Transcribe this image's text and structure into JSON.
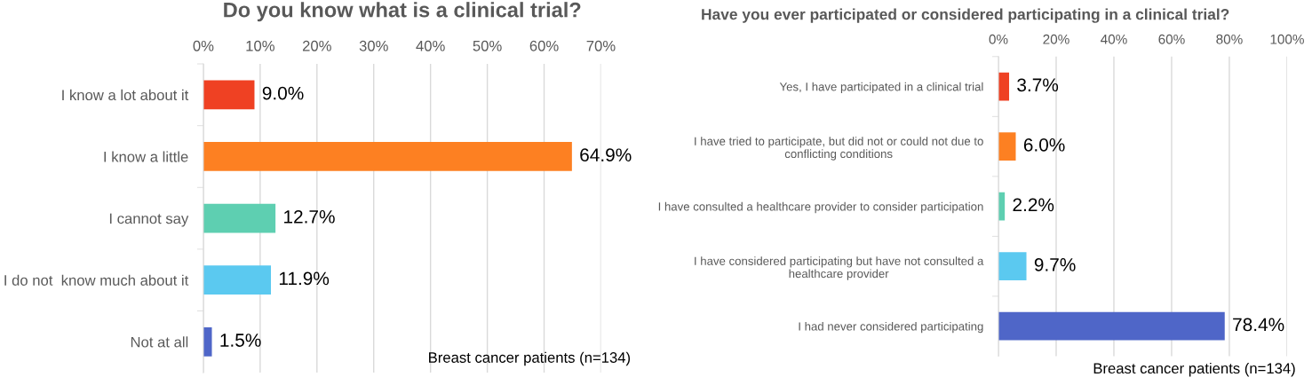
{
  "chart_data": [
    {
      "type": "bar",
      "orientation": "horizontal",
      "title": "Do you know what is a clinical trial?",
      "categories": [
        "I know a lot about it",
        "I know a little",
        "I cannot say",
        "I do not  know much about it",
        "Not at all"
      ],
      "values": [
        9.0,
        64.9,
        12.7,
        11.9,
        1.5
      ],
      "colors": [
        "#ef4123",
        "#fd8022",
        "#5ecfb1",
        "#5bc9f0",
        "#4f66c8"
      ],
      "value_labels": [
        "9.0%",
        "64.9%",
        "12.7%",
        "11.9%",
        "1.5%"
      ],
      "xlim": [
        0,
        70
      ],
      "xticks": [
        {
          "value": 0,
          "label": "0%"
        },
        {
          "value": 10,
          "label": "10%"
        },
        {
          "value": 20,
          "label": "20%"
        },
        {
          "value": 30,
          "label": "30%"
        },
        {
          "value": 40,
          "label": "40%"
        },
        {
          "value": 50,
          "label": "50%"
        },
        {
          "value": 60,
          "label": "60%"
        },
        {
          "value": 70,
          "label": "70%"
        }
      ],
      "grid": "x",
      "legend": false,
      "annotations": [
        "Breast cancer patients (n=134)"
      ]
    },
    {
      "type": "bar",
      "orientation": "horizontal",
      "title": "Have you ever participated or considered participating in a clinical trial?",
      "categories": [
        "Yes, I have participated in a clinical trial",
        "I have tried to participate, but did not or could not due to\nconflicting conditions",
        "I have consulted a healthcare provider to consider participation",
        "I have considered participating but have not consulted a\nhealthcare provider",
        "I had never considered participating"
      ],
      "values": [
        3.7,
        6.0,
        2.2,
        9.7,
        78.4
      ],
      "colors": [
        "#ef4123",
        "#fd8022",
        "#5ecfb1",
        "#5bc9f0",
        "#4f66c8"
      ],
      "value_labels": [
        "3.7%",
        "6.0%",
        "2.2%",
        "9.7%",
        "78.4%"
      ],
      "xlim": [
        0,
        100
      ],
      "xticks": [
        {
          "value": 0,
          "label": "0%"
        },
        {
          "value": 20,
          "label": "20%"
        },
        {
          "value": 40,
          "label": "40%"
        },
        {
          "value": 60,
          "label": "60%"
        },
        {
          "value": 80,
          "label": "80%"
        },
        {
          "value": 100,
          "label": "100%"
        }
      ],
      "grid": "x",
      "legend": false,
      "annotations": [
        "Breast cancer patients (n=134)"
      ]
    }
  ]
}
